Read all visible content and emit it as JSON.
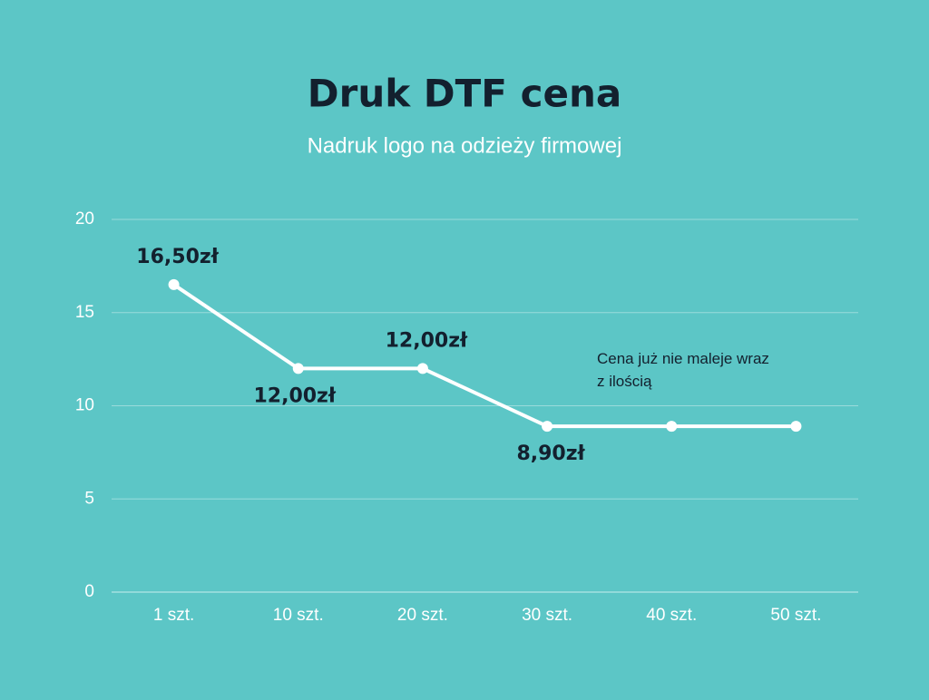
{
  "chart_data": {
    "type": "line",
    "title": "Druk DTF cena",
    "subtitle": "Nadruk logo na odzieży firmowej",
    "categories": [
      "1 szt.",
      "10 szt.",
      "20 szt.",
      "30 szt.",
      "40 szt.",
      "50 szt."
    ],
    "values": [
      16.5,
      12,
      12,
      8.9,
      8.9,
      8.9
    ],
    "value_labels": [
      "16,50zł",
      "12,00zł",
      "12,00zł",
      "8,90zł",
      null,
      null
    ],
    "color": "#ffffff",
    "ylim": [
      0,
      20
    ],
    "yticks": [
      0,
      5,
      10,
      15,
      20
    ],
    "grid": true,
    "annotation": "Cena już nie maleje wraz z ilością"
  }
}
